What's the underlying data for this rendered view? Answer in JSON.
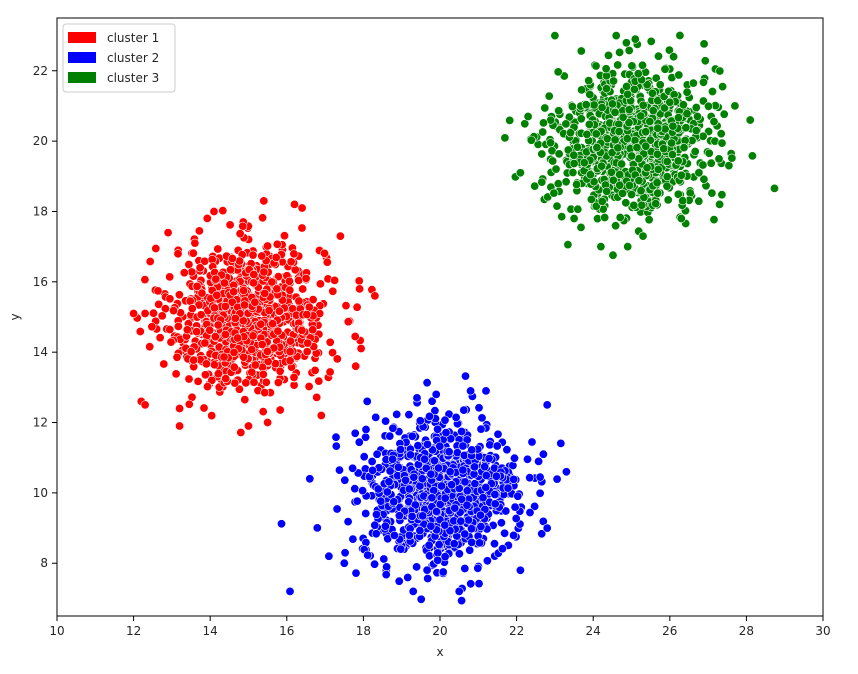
{
  "chart_data": {
    "type": "scatter",
    "title": "",
    "xlabel": "x",
    "ylabel": "y",
    "xlim": [
      10,
      30
    ],
    "ylim": [
      6.5,
      23.5
    ],
    "xticks": [
      10,
      12,
      14,
      16,
      18,
      20,
      22,
      24,
      26,
      28,
      30
    ],
    "yticks": [
      8,
      10,
      12,
      14,
      16,
      18,
      20,
      22
    ],
    "grid": false,
    "legend_position": "top-left",
    "series": [
      {
        "name": "cluster 1",
        "color": "#ff0000",
        "center": [
          15.0,
          15.0
        ],
        "std": 1.0,
        "count": 1000,
        "points": [
          [
            12.0,
            15.1
          ],
          [
            12.3,
            15.1
          ],
          [
            12.2,
            12.6
          ],
          [
            12.3,
            12.5
          ],
          [
            13.2,
            11.9
          ],
          [
            13.2,
            12.4
          ],
          [
            12.9,
            17.4
          ],
          [
            13.6,
            17.1
          ],
          [
            14.1,
            18.0
          ],
          [
            15.4,
            18.3
          ],
          [
            16.2,
            18.2
          ],
          [
            16.4,
            18.1
          ],
          [
            17.4,
            17.3
          ],
          [
            17.9,
            15.8
          ],
          [
            18.3,
            15.6
          ],
          [
            17.8,
            13.6
          ],
          [
            16.9,
            12.2
          ],
          [
            15.5,
            12.0
          ],
          [
            15.0,
            11.9
          ]
        ]
      },
      {
        "name": "cluster 2",
        "color": "#0000ff",
        "center": [
          20.0,
          10.0
        ],
        "std": 1.0,
        "count": 1000,
        "points": [
          [
            16.6,
            10.4
          ],
          [
            17.1,
            8.2
          ],
          [
            17.5,
            8.0
          ],
          [
            18.1,
            12.6
          ],
          [
            19.4,
            12.7
          ],
          [
            19.9,
            12.8
          ],
          [
            20.8,
            12.9
          ],
          [
            21.2,
            12.9
          ],
          [
            22.8,
            12.5
          ],
          [
            22.7,
            11.1
          ],
          [
            23.3,
            10.6
          ],
          [
            22.8,
            9.0
          ],
          [
            22.1,
            7.8
          ],
          [
            20.5,
            7.2
          ],
          [
            19.3,
            7.2
          ]
        ]
      },
      {
        "name": "cluster 3",
        "color": "#008000",
        "center": [
          25.0,
          20.0
        ],
        "std": 1.0,
        "count": 1000,
        "points": [
          [
            23.0,
            23.0
          ],
          [
            24.6,
            23.0
          ],
          [
            25.1,
            22.9
          ],
          [
            26.1,
            22.4
          ],
          [
            27.7,
            21.0
          ],
          [
            28.1,
            20.6
          ],
          [
            27.3,
            18.2
          ],
          [
            26.3,
            17.8
          ],
          [
            25.3,
            17.3
          ],
          [
            24.9,
            17.0
          ],
          [
            24.2,
            17.0
          ],
          [
            23.5,
            17.8
          ],
          [
            22.1,
            19.1
          ],
          [
            22.3,
            20.7
          ]
        ]
      }
    ]
  }
}
